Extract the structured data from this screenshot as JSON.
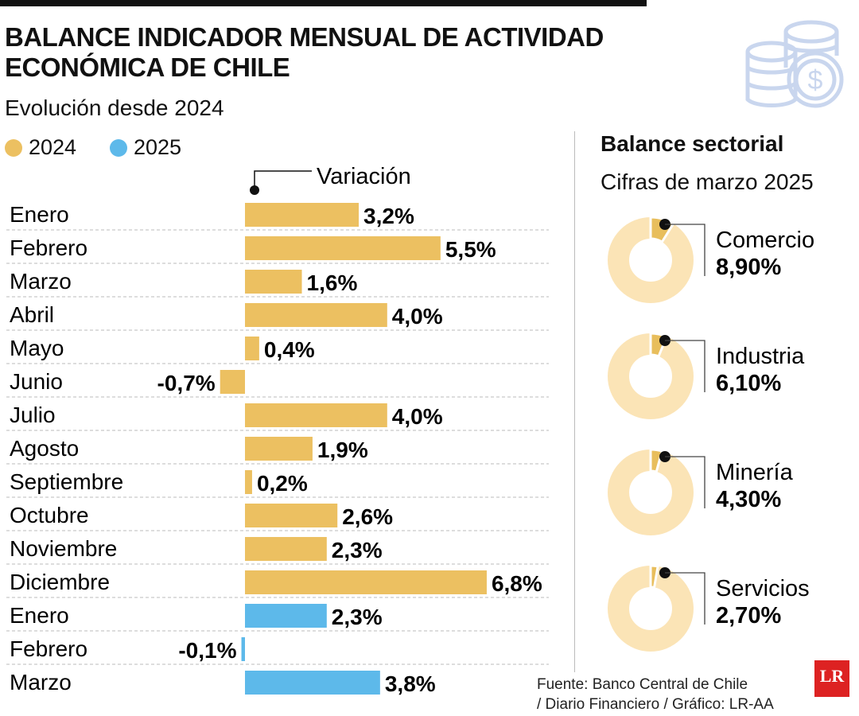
{
  "header": {
    "title": "BALANCE INDICADOR MENSUAL DE ACTIVIDAD ECONÓMICA DE CHILE",
    "subtitle": "Evolución desde 2024"
  },
  "legend": [
    {
      "label": "2024",
      "color": "#ecc061"
    },
    {
      "label": "2025",
      "color": "#5db9ea"
    }
  ],
  "chart_data": [
    {
      "type": "bar",
      "orientation": "horizontal",
      "value_label": "Variación",
      "unit": "%",
      "categories": [
        "Enero",
        "Febrero",
        "Marzo",
        "Abril",
        "Mayo",
        "Junio",
        "Julio",
        "Agosto",
        "Septiembre",
        "Octubre",
        "Noviembre",
        "Diciembre",
        "Enero",
        "Febrero",
        "Marzo"
      ],
      "years": [
        "2024",
        "2024",
        "2024",
        "2024",
        "2024",
        "2024",
        "2024",
        "2024",
        "2024",
        "2024",
        "2024",
        "2024",
        "2025",
        "2025",
        "2025"
      ],
      "values": [
        3.2,
        5.5,
        1.6,
        4.0,
        0.4,
        -0.7,
        4.0,
        1.9,
        0.2,
        2.6,
        2.3,
        6.8,
        2.3,
        -0.1,
        3.8
      ],
      "labels": [
        "3,2%",
        "5,5%",
        "1,6%",
        "4,0%",
        "0,4%",
        "-0,7%",
        "4,0%",
        "1,9%",
        "0,2%",
        "2,6%",
        "2,3%",
        "6,8%",
        "2,3%",
        "-0,1%",
        "3,8%"
      ]
    },
    {
      "type": "pie",
      "style": "donut",
      "title": "Balance sectorial",
      "subtitle": "Cifras de marzo 2025",
      "slices": [
        {
          "name": "Comercio",
          "value": 8.9,
          "label": "8,90%"
        },
        {
          "name": "Industria",
          "value": 6.1,
          "label": "6,10%"
        },
        {
          "name": "Minería",
          "value": 4.3,
          "label": "4,30%"
        },
        {
          "name": "Servicios",
          "value": 2.7,
          "label": "2,70%"
        }
      ],
      "colors": {
        "slice": "#e8be5c",
        "ring": "#fbe4b6"
      }
    }
  ],
  "footer": {
    "source_line1": "Fuente: Banco Central de Chile",
    "source_line2": "/ Diario Financiero / Gráfico: LR-AA",
    "logo": "LR"
  },
  "icons": {
    "header": "coins-dollar-icon"
  }
}
